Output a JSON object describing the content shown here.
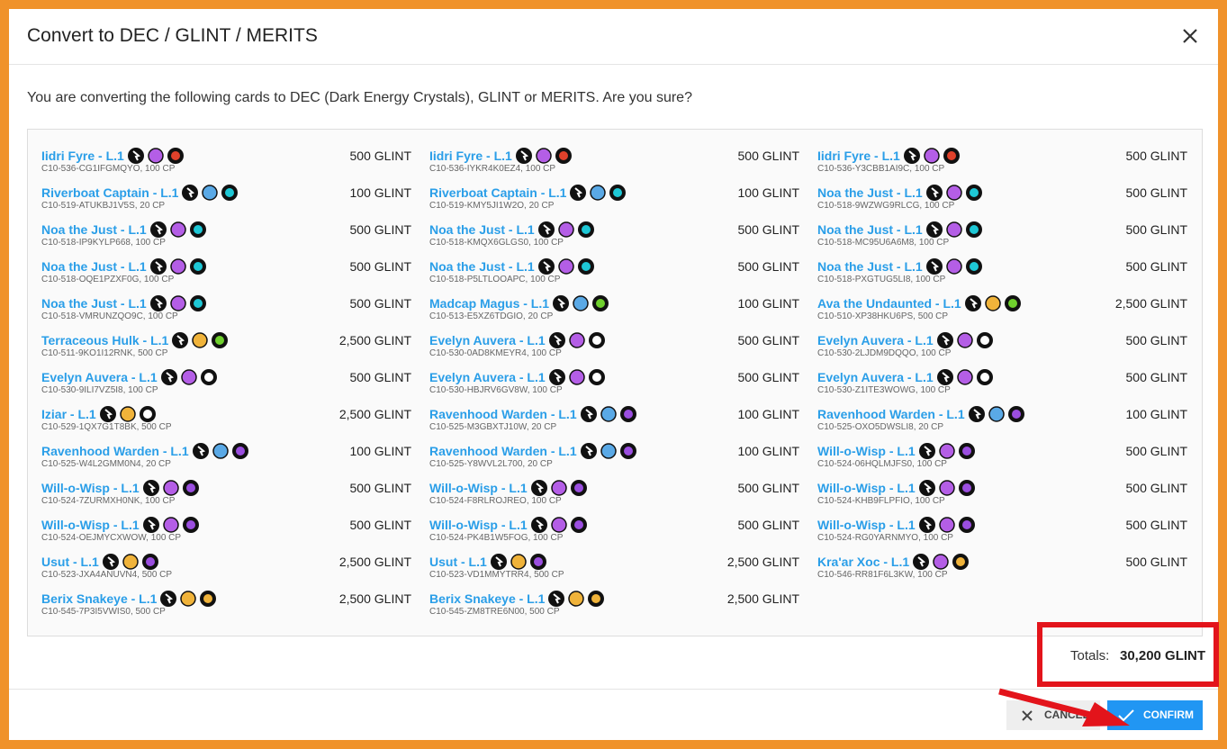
{
  "header": {
    "title": "Convert to DEC / GLINT / MERITS"
  },
  "body": {
    "message": "You are converting the following cards to DEC (Dark Energy Crystals), GLINT or MERITS. Are you sure?"
  },
  "cards": [
    {
      "name": "Iidri Fyre - L.1",
      "id": "C10-536-CG1IFGMQYO, 100 CP",
      "value": "500 GLINT",
      "icons": [
        "#b45ee6",
        "#e0412b"
      ]
    },
    {
      "name": "Iidri Fyre - L.1",
      "id": "C10-536-IYKR4K0EZ4, 100 CP",
      "value": "500 GLINT",
      "icons": [
        "#b45ee6",
        "#e0412b"
      ]
    },
    {
      "name": "Iidri Fyre - L.1",
      "id": "C10-536-Y3CBB1AI9C, 100 CP",
      "value": "500 GLINT",
      "icons": [
        "#b45ee6",
        "#e0412b"
      ]
    },
    {
      "name": "Riverboat Captain - L.1",
      "id": "C10-519-ATUKBJ1V5S, 20 CP",
      "value": "100 GLINT",
      "icons": [
        "#5aa9e6",
        "#1ec8d6"
      ]
    },
    {
      "name": "Riverboat Captain - L.1",
      "id": "C10-519-KMY5JI1W2O, 20 CP",
      "value": "100 GLINT",
      "icons": [
        "#5aa9e6",
        "#1ec8d6"
      ]
    },
    {
      "name": "Noa the Just - L.1",
      "id": "C10-518-9WZWG9RLCG, 100 CP",
      "value": "500 GLINT",
      "icons": [
        "#b45ee6",
        "#1ec8d6"
      ]
    },
    {
      "name": "Noa the Just - L.1",
      "id": "C10-518-IP9KYLP668, 100 CP",
      "value": "500 GLINT",
      "icons": [
        "#b45ee6",
        "#1ec8d6"
      ]
    },
    {
      "name": "Noa the Just - L.1",
      "id": "C10-518-KMQX6GLGS0, 100 CP",
      "value": "500 GLINT",
      "icons": [
        "#b45ee6",
        "#1ec8d6"
      ]
    },
    {
      "name": "Noa the Just - L.1",
      "id": "C10-518-MC95U6A6M8, 100 CP",
      "value": "500 GLINT",
      "icons": [
        "#b45ee6",
        "#1ec8d6"
      ]
    },
    {
      "name": "Noa the Just - L.1",
      "id": "C10-518-OQE1PZXF0G, 100 CP",
      "value": "500 GLINT",
      "icons": [
        "#b45ee6",
        "#1ec8d6"
      ]
    },
    {
      "name": "Noa the Just - L.1",
      "id": "C10-518-P5LTLOOAPC, 100 CP",
      "value": "500 GLINT",
      "icons": [
        "#b45ee6",
        "#1ec8d6"
      ]
    },
    {
      "name": "Noa the Just - L.1",
      "id": "C10-518-PXGTUG5LI8, 100 CP",
      "value": "500 GLINT",
      "icons": [
        "#b45ee6",
        "#1ec8d6"
      ]
    },
    {
      "name": "Noa the Just - L.1",
      "id": "C10-518-VMRUNZQO9C, 100 CP",
      "value": "500 GLINT",
      "icons": [
        "#b45ee6",
        "#1ec8d6"
      ]
    },
    {
      "name": "Madcap Magus - L.1",
      "id": "C10-513-E5XZ6TDGIO, 20 CP",
      "value": "100 GLINT",
      "icons": [
        "#5aa9e6",
        "#6fd12d"
      ]
    },
    {
      "name": "Ava the Undaunted - L.1",
      "id": "C10-510-XP38HKU6PS, 500 CP",
      "value": "2,500 GLINT",
      "icons": [
        "#f0b33a",
        "#6fd12d"
      ]
    },
    {
      "name": "Terraceous Hulk - L.1",
      "id": "C10-511-9KO1I12RNK, 500 CP",
      "value": "2,500 GLINT",
      "icons": [
        "#f0b33a",
        "#6fd12d"
      ]
    },
    {
      "name": "Evelyn Auvera - L.1",
      "id": "C10-530-0AD8KMEYR4, 100 CP",
      "value": "500 GLINT",
      "icons": [
        "#b45ee6",
        "#ffffff"
      ]
    },
    {
      "name": "Evelyn Auvera - L.1",
      "id": "C10-530-2LJDM9DQQO, 100 CP",
      "value": "500 GLINT",
      "icons": [
        "#b45ee6",
        "#ffffff"
      ]
    },
    {
      "name": "Evelyn Auvera - L.1",
      "id": "C10-530-9ILI7VZ5I8, 100 CP",
      "value": "500 GLINT",
      "icons": [
        "#b45ee6",
        "#ffffff"
      ]
    },
    {
      "name": "Evelyn Auvera - L.1",
      "id": "C10-530-HBJRV6GV8W, 100 CP",
      "value": "500 GLINT",
      "icons": [
        "#b45ee6",
        "#ffffff"
      ]
    },
    {
      "name": "Evelyn Auvera - L.1",
      "id": "C10-530-Z1ITE3WOWG, 100 CP",
      "value": "500 GLINT",
      "icons": [
        "#b45ee6",
        "#ffffff"
      ]
    },
    {
      "name": "Iziar - L.1",
      "id": "C10-529-1QX7G1T8BK, 500 CP",
      "value": "2,500 GLINT",
      "icons": [
        "#f0b33a",
        "#ffffff"
      ]
    },
    {
      "name": "Ravenhood Warden - L.1",
      "id": "C10-525-M3GBXTJ10W, 20 CP",
      "value": "100 GLINT",
      "icons": [
        "#5aa9e6",
        "#9b4ee0"
      ]
    },
    {
      "name": "Ravenhood Warden - L.1",
      "id": "C10-525-OXO5DWSLI8, 20 CP",
      "value": "100 GLINT",
      "icons": [
        "#5aa9e6",
        "#9b4ee0"
      ]
    },
    {
      "name": "Ravenhood Warden - L.1",
      "id": "C10-525-W4L2GMM0N4, 20 CP",
      "value": "100 GLINT",
      "icons": [
        "#5aa9e6",
        "#9b4ee0"
      ]
    },
    {
      "name": "Ravenhood Warden - L.1",
      "id": "C10-525-Y8WVL2L700, 20 CP",
      "value": "100 GLINT",
      "icons": [
        "#5aa9e6",
        "#9b4ee0"
      ]
    },
    {
      "name": "Will-o-Wisp - L.1",
      "id": "C10-524-06HQLMJFS0, 100 CP",
      "value": "500 GLINT",
      "icons": [
        "#b45ee6",
        "#9b4ee0"
      ]
    },
    {
      "name": "Will-o-Wisp - L.1",
      "id": "C10-524-7ZURMXH0NK, 100 CP",
      "value": "500 GLINT",
      "icons": [
        "#b45ee6",
        "#9b4ee0"
      ]
    },
    {
      "name": "Will-o-Wisp - L.1",
      "id": "C10-524-F8RLROJREO, 100 CP",
      "value": "500 GLINT",
      "icons": [
        "#b45ee6",
        "#9b4ee0"
      ]
    },
    {
      "name": "Will-o-Wisp - L.1",
      "id": "C10-524-KHB9FLPFIO, 100 CP",
      "value": "500 GLINT",
      "icons": [
        "#b45ee6",
        "#9b4ee0"
      ]
    },
    {
      "name": "Will-o-Wisp - L.1",
      "id": "C10-524-OEJMYCXWOW, 100 CP",
      "value": "500 GLINT",
      "icons": [
        "#b45ee6",
        "#9b4ee0"
      ]
    },
    {
      "name": "Will-o-Wisp - L.1",
      "id": "C10-524-PK4B1W5FOG, 100 CP",
      "value": "500 GLINT",
      "icons": [
        "#b45ee6",
        "#9b4ee0"
      ]
    },
    {
      "name": "Will-o-Wisp - L.1",
      "id": "C10-524-RG0YARNMYO, 100 CP",
      "value": "500 GLINT",
      "icons": [
        "#b45ee6",
        "#9b4ee0"
      ]
    },
    {
      "name": "Usut - L.1",
      "id": "C10-523-JXA4ANUVN4, 500 CP",
      "value": "2,500 GLINT",
      "icons": [
        "#f0b33a",
        "#9b4ee0"
      ]
    },
    {
      "name": "Usut - L.1",
      "id": "C10-523-VD1MMYTRR4, 500 CP",
      "value": "2,500 GLINT",
      "icons": [
        "#f0b33a",
        "#9b4ee0"
      ]
    },
    {
      "name": "Kra'ar Xoc - L.1",
      "id": "C10-546-RR81F6L3KW, 100 CP",
      "value": "500 GLINT",
      "icons": [
        "#b45ee6",
        "#f0b33a"
      ]
    },
    {
      "name": "Berix Snakeye - L.1",
      "id": "C10-545-7P3I5VWIS0, 500 CP",
      "value": "2,500 GLINT",
      "icons": [
        "#f0b33a",
        "#f0b33a"
      ]
    },
    {
      "name": "Berix Snakeye - L.1",
      "id": "C10-545-ZM8TRE6N00, 500 CP",
      "value": "2,500 GLINT",
      "icons": [
        "#f0b33a",
        "#f0b33a"
      ]
    }
  ],
  "totals": {
    "label": "Totals:",
    "value": "30,200 GLINT"
  },
  "buttons": {
    "cancel": "CANCEL",
    "confirm": "CONFIRM"
  }
}
